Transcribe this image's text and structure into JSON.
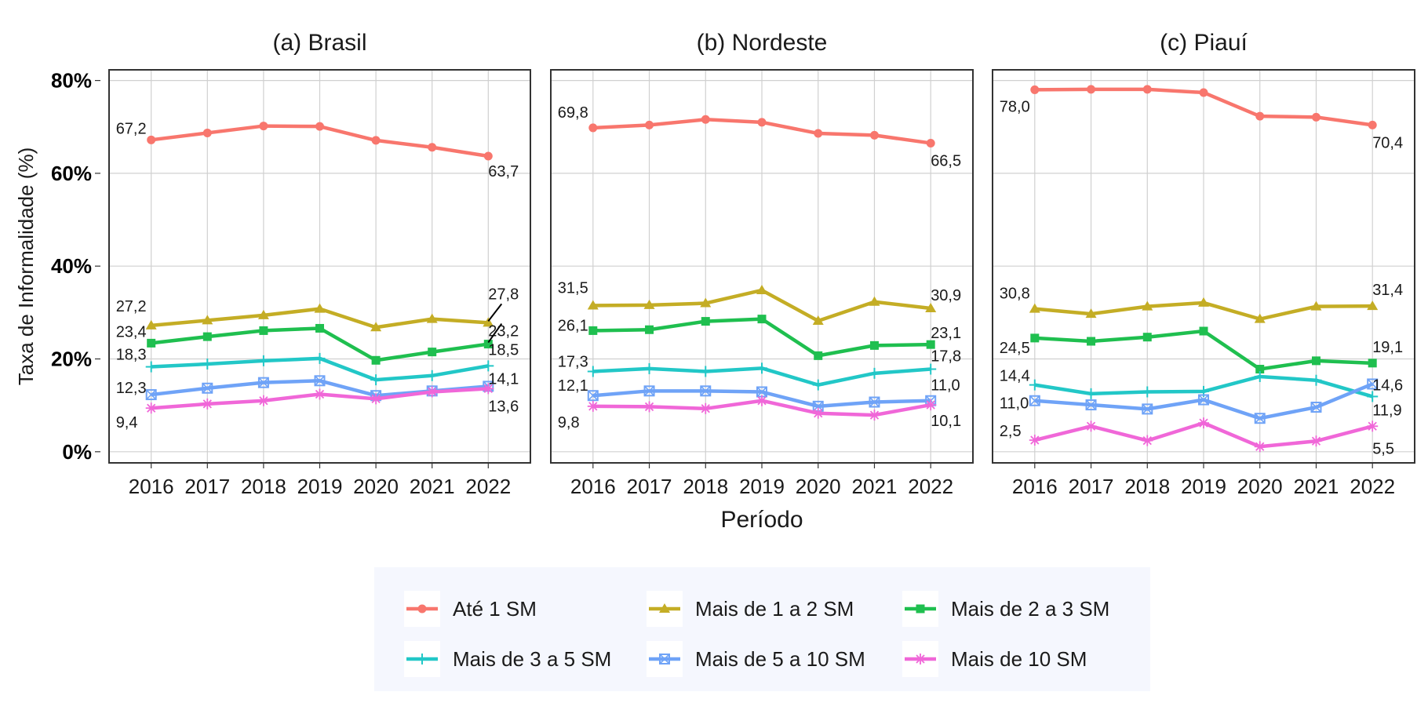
{
  "chart_data": {
    "type": "line",
    "ylabel": "Taxa de Informalidade (%)",
    "xlabel": "Período",
    "x": [
      "2016",
      "2017",
      "2018",
      "2019",
      "2020",
      "2021",
      "2022"
    ],
    "ylim": [
      -2.4,
      82.3
    ],
    "yticks": [
      0,
      20,
      40,
      60,
      80
    ],
    "ytick_labels": [
      "0%",
      "20%",
      "40%",
      "60%",
      "80%"
    ],
    "grid": true,
    "legend_position": "bottom",
    "series_meta": [
      {
        "name": "Até 1 SM",
        "color": "#f8766d",
        "marker": "circle"
      },
      {
        "name": "Mais de 1 a 2 SM",
        "color": "#c4ad25",
        "marker": "triangle"
      },
      {
        "name": "Mais de 2 a 3 SM",
        "color": "#1fbf4f",
        "marker": "square"
      },
      {
        "name": "Mais de 3 a 5 SM",
        "color": "#22c7c7",
        "marker": "plus"
      },
      {
        "name": "Mais de 5 a 10 SM",
        "color": "#6fa3f7",
        "marker": "boxed-x"
      },
      {
        "name": "Mais de 10 SM",
        "color": "#f067d8",
        "marker": "asterisk"
      }
    ],
    "panels": [
      {
        "title": "(a) Brasil",
        "series": [
          {
            "name": "Até 1 SM",
            "values": [
              67.2,
              68.7,
              70.2,
              70.1,
              67.1,
              65.6,
              63.7
            ]
          },
          {
            "name": "Mais de 1 a 2 SM",
            "values": [
              27.2,
              28.3,
              29.4,
              30.8,
              26.8,
              28.6,
              27.8
            ]
          },
          {
            "name": "Mais de 2 a 3 SM",
            "values": [
              23.4,
              24.8,
              26.1,
              26.6,
              19.7,
              21.5,
              23.2
            ]
          },
          {
            "name": "Mais de 3 a 5 SM",
            "values": [
              18.3,
              18.9,
              19.6,
              20.1,
              15.5,
              16.4,
              18.5
            ]
          },
          {
            "name": "Mais de 5 a 10 SM",
            "values": [
              12.3,
              13.7,
              14.9,
              15.3,
              12.1,
              13.1,
              14.1
            ]
          },
          {
            "name": "Mais de 10 SM",
            "values": [
              9.4,
              10.3,
              11.0,
              12.4,
              11.4,
              12.9,
              13.6
            ]
          }
        ],
        "labels": [
          {
            "text": "67,2"
          },
          {
            "text": "63,7"
          },
          {
            "text": "27,2"
          },
          {
            "text": "27,8"
          },
          {
            "text": "23,4"
          },
          {
            "text": "23,2"
          },
          {
            "text": "18,3"
          },
          {
            "text": "18,5"
          },
          {
            "text": "12,3"
          },
          {
            "text": "14,1"
          },
          {
            "text": "9,4"
          },
          {
            "text": "13,6"
          }
        ]
      },
      {
        "title": "(b) Nordeste",
        "series": [
          {
            "name": "Até 1 SM",
            "values": [
              69.8,
              70.4,
              71.6,
              71.0,
              68.6,
              68.2,
              66.5
            ]
          },
          {
            "name": "Mais de 1 a 2 SM",
            "values": [
              31.5,
              31.6,
              32.0,
              34.8,
              28.2,
              32.3,
              30.9
            ]
          },
          {
            "name": "Mais de 2 a 3 SM",
            "values": [
              26.1,
              26.3,
              28.1,
              28.6,
              20.7,
              22.9,
              23.1
            ]
          },
          {
            "name": "Mais de 3 a 5 SM",
            "values": [
              17.3,
              17.9,
              17.3,
              18.0,
              14.4,
              16.9,
              17.8
            ]
          },
          {
            "name": "Mais de 5 a 10 SM",
            "values": [
              12.1,
              13.1,
              13.1,
              12.9,
              9.8,
              10.7,
              11.0
            ]
          },
          {
            "name": "Mais de 10 SM",
            "values": [
              9.8,
              9.7,
              9.3,
              11.0,
              8.3,
              7.9,
              10.1
            ]
          }
        ],
        "labels": [
          {
            "text": "69,8"
          },
          {
            "text": "66,5"
          },
          {
            "text": "31,5"
          },
          {
            "text": "30,9"
          },
          {
            "text": "26,1"
          },
          {
            "text": "23,1"
          },
          {
            "text": "17,3"
          },
          {
            "text": "17,8"
          },
          {
            "text": "12,1"
          },
          {
            "text": "11,0"
          },
          {
            "text": "9,8"
          },
          {
            "text": "10,1"
          }
        ]
      },
      {
        "title": "(c) Piauí",
        "series": [
          {
            "name": "Até 1 SM",
            "values": [
              78.0,
              78.1,
              78.1,
              77.4,
              72.3,
              72.1,
              70.4
            ]
          },
          {
            "name": "Mais de 1 a 2 SM",
            "values": [
              30.8,
              29.7,
              31.3,
              32.1,
              28.6,
              31.3,
              31.4
            ]
          },
          {
            "name": "Mais de 2 a 3 SM",
            "values": [
              24.5,
              23.8,
              24.7,
              26.0,
              17.8,
              19.6,
              19.1
            ]
          },
          {
            "name": "Mais de 3 a 5 SM",
            "values": [
              14.4,
              12.5,
              12.9,
              13.0,
              16.2,
              15.4,
              11.9
            ]
          },
          {
            "name": "Mais de 5 a 10 SM",
            "values": [
              11.0,
              10.1,
              9.2,
              11.2,
              7.2,
              9.6,
              14.6
            ]
          },
          {
            "name": "Mais de 10 SM",
            "values": [
              2.5,
              5.5,
              2.4,
              6.2,
              1.1,
              2.3,
              5.5
            ]
          }
        ],
        "labels": [
          {
            "text": "78,0"
          },
          {
            "text": "70,4"
          },
          {
            "text": "30,8"
          },
          {
            "text": "31,4"
          },
          {
            "text": "24,5"
          },
          {
            "text": "19,1"
          },
          {
            "text": "14,4"
          },
          {
            "text": "14,6"
          },
          {
            "text": "11,0"
          },
          {
            "text": "11,9"
          },
          {
            "text": "2,5"
          },
          {
            "text": "5,5"
          }
        ]
      }
    ]
  }
}
